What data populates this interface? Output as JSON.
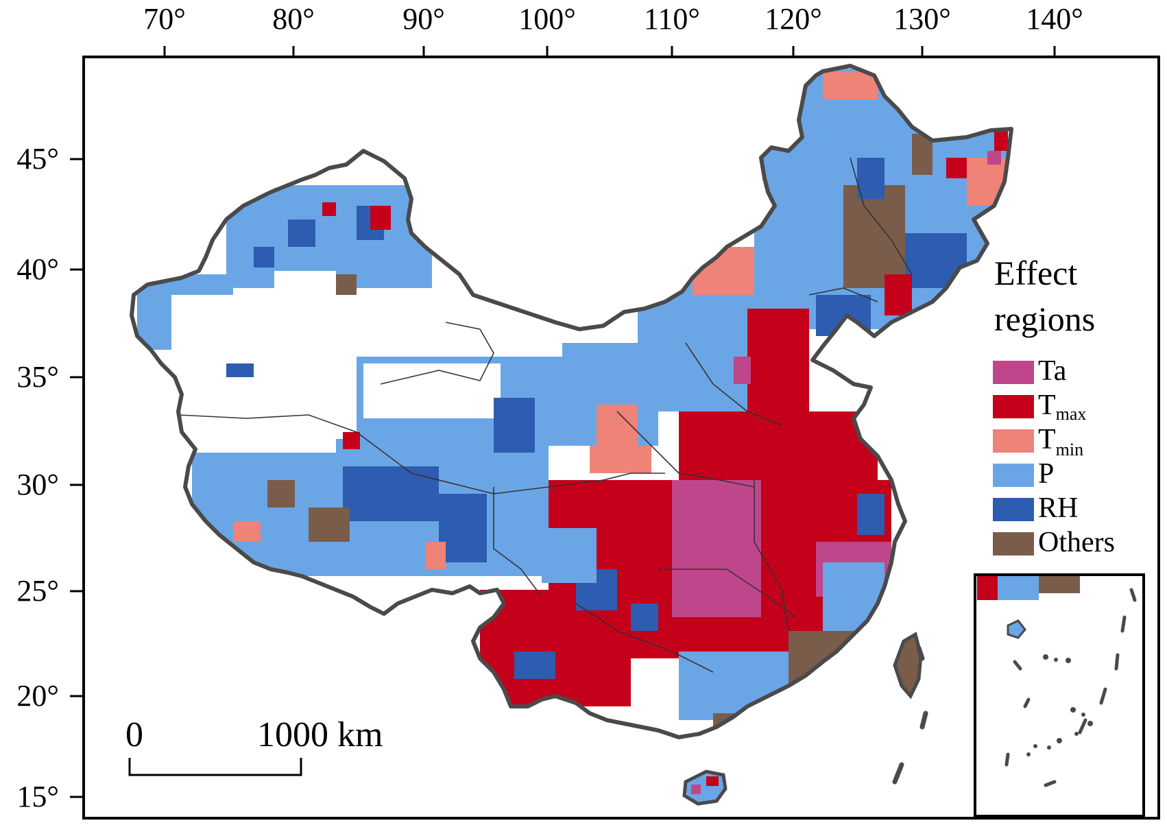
{
  "axes": {
    "longitude_ticks": [
      "70°",
      "80°",
      "90°",
      "100°",
      "110°",
      "120°",
      "130°",
      "140°"
    ],
    "latitude_ticks": [
      "45°",
      "40°",
      "35°",
      "30°",
      "25°",
      "20°",
      "15°"
    ]
  },
  "legend": {
    "title_line1": "Effect",
    "title_line2": "regions",
    "items": [
      {
        "key": "Ta",
        "label": "Ta",
        "sub": "",
        "color": "#c0468c"
      },
      {
        "key": "Tmax",
        "label": "T",
        "sub": "max",
        "color": "#c4001a"
      },
      {
        "key": "Tmin",
        "label": "T",
        "sub": "min",
        "color": "#ef8378"
      },
      {
        "key": "P",
        "label": "P",
        "sub": "",
        "color": "#6aa6e6"
      },
      {
        "key": "RH",
        "label": "RH",
        "sub": "",
        "color": "#2e5cb0"
      },
      {
        "key": "Others",
        "label": "Others",
        "sub": "",
        "color": "#7a5c4a"
      }
    ]
  },
  "scale_bar": {
    "start_label": "0",
    "end_label": "1000 km"
  },
  "colors": {
    "boundary": "#4a4a4a",
    "province_line": "#333333",
    "background": "#ffffff"
  }
}
